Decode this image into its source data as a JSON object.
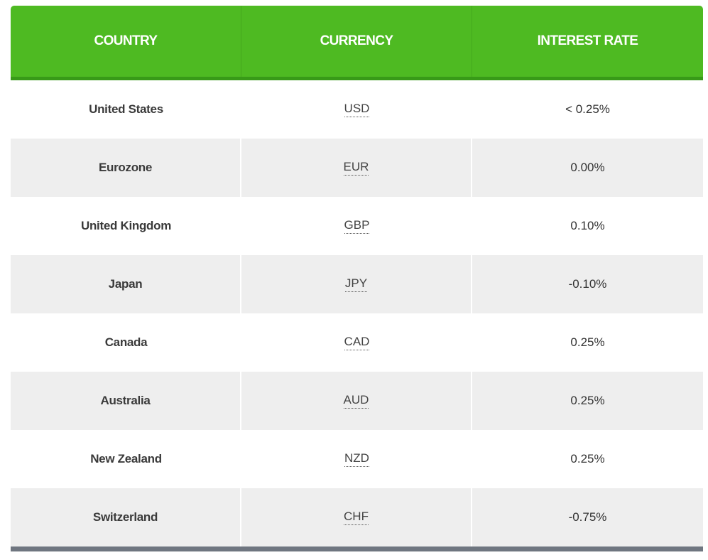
{
  "table": {
    "headers": {
      "country": "COUNTRY",
      "currency": "CURRENCY",
      "rate": "INTEREST RATE"
    },
    "rows": [
      {
        "country": "United States",
        "currency": "USD",
        "rate": "< 0.25%"
      },
      {
        "country": "Eurozone",
        "currency": "EUR",
        "rate": "0.00%"
      },
      {
        "country": "United Kingdom",
        "currency": "GBP",
        "rate": "0.10%"
      },
      {
        "country": "Japan",
        "currency": "JPY",
        "rate": "-0.10%"
      },
      {
        "country": "Canada",
        "currency": "CAD",
        "rate": "0.25%"
      },
      {
        "country": "Australia",
        "currency": "AUD",
        "rate": "0.25%"
      },
      {
        "country": "New Zealand",
        "currency": "NZD",
        "rate": "0.25%"
      },
      {
        "country": "Switzerland",
        "currency": "CHF",
        "rate": "-0.75%"
      }
    ]
  },
  "colors": {
    "header_bg": "#4eba22",
    "header_border": "#389a18",
    "row_alt_bg": "#eeeeee",
    "footer_bar": "#6f7680"
  }
}
